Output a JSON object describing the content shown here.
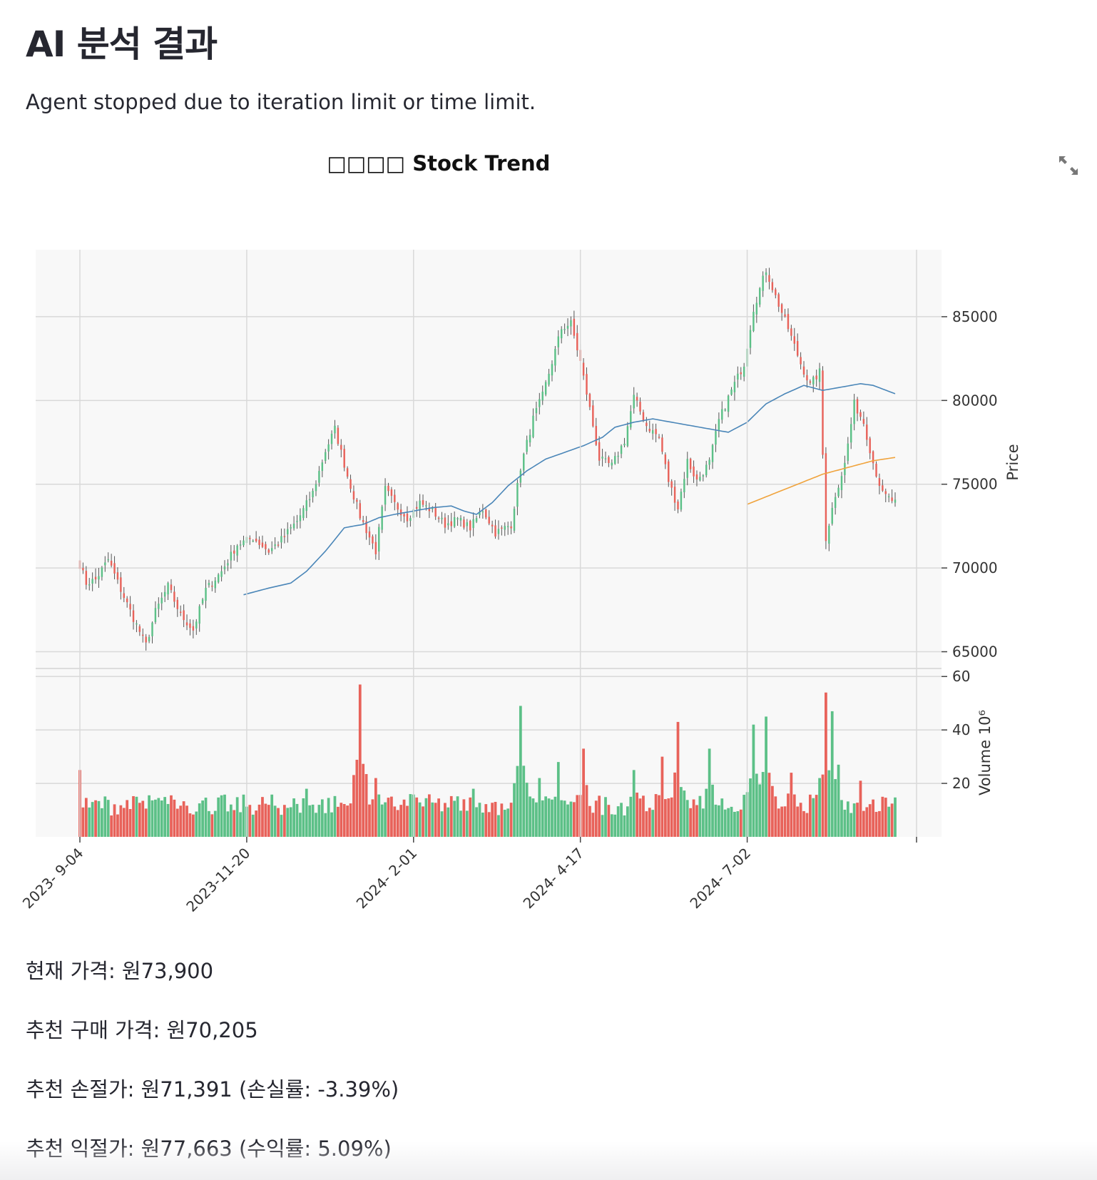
{
  "page": {
    "title": "AI 분석 결과",
    "status": "Agent stopped due to iteration limit or time limit."
  },
  "toolbar": {
    "expand_icon": "fullscreen-expand-icon"
  },
  "results": {
    "current_price": "현재 가격: 원73,900",
    "buy_price": "추천 구매 가격: 원70,205",
    "stop_loss": "추천 손절가: 원71,391 (손실률: -3.39%)",
    "take_profit": "추천 익절가: 원77,663 (수익률: 5.09%)"
  },
  "colors": {
    "up": "#5cc087",
    "down": "#e8625a",
    "ma_short": "#4a86b8",
    "ma_long": "#f0a33c",
    "grid": "#d9d9d9",
    "panel_bg": "#f8f8f8"
  },
  "chart_data": {
    "type": "candlestick",
    "title": "□□□□ Stock Trend",
    "ylabel": "Price",
    "volume_label": "Volume  10⁶",
    "ylim": [
      64000,
      89000
    ],
    "volume_ylim": [
      0,
      63
    ],
    "y_ticks": [
      65000,
      70000,
      75000,
      80000,
      85000
    ],
    "volume_ticks": [
      20,
      40,
      60
    ],
    "x_ticks": [
      {
        "label": "2023- 9-04",
        "index": 0
      },
      {
        "label": "2023-11-20",
        "index": 53
      },
      {
        "label": "2024- 2-01",
        "index": 106
      },
      {
        "label": "2024- 4-17",
        "index": 159
      },
      {
        "label": "2024- 7-02",
        "index": 212
      }
    ],
    "n_bars": 260,
    "grid": true,
    "close_anchors": [
      [
        0,
        70200
      ],
      [
        2,
        69100
      ],
      [
        5,
        69300
      ],
      [
        9,
        70500
      ],
      [
        13,
        68700
      ],
      [
        17,
        67000
      ],
      [
        21,
        65400
      ],
      [
        24,
        67400
      ],
      [
        28,
        68900
      ],
      [
        32,
        67200
      ],
      [
        36,
        66300
      ],
      [
        40,
        68700
      ],
      [
        45,
        69800
      ],
      [
        50,
        71400
      ],
      [
        55,
        71800
      ],
      [
        60,
        71000
      ],
      [
        64,
        71700
      ],
      [
        69,
        72800
      ],
      [
        74,
        74500
      ],
      [
        78,
        77000
      ],
      [
        81,
        78300
      ],
      [
        85,
        75500
      ],
      [
        89,
        73100
      ],
      [
        94,
        71000
      ],
      [
        97,
        74700
      ],
      [
        100,
        73800
      ],
      [
        104,
        73000
      ],
      [
        108,
        73900
      ],
      [
        112,
        73400
      ],
      [
        116,
        72600
      ],
      [
        120,
        72900
      ],
      [
        124,
        72400
      ],
      [
        128,
        73500
      ],
      [
        132,
        72100
      ],
      [
        137,
        72600
      ],
      [
        140,
        76000
      ],
      [
        144,
        78900
      ],
      [
        147,
        80300
      ],
      [
        150,
        82300
      ],
      [
        153,
        84300
      ],
      [
        156,
        84600
      ],
      [
        159,
        82300
      ],
      [
        162,
        79500
      ],
      [
        165,
        76500
      ],
      [
        169,
        76100
      ],
      [
        173,
        77600
      ],
      [
        176,
        80200
      ],
      [
        180,
        78500
      ],
      [
        184,
        77800
      ],
      [
        187,
        75200
      ],
      [
        190,
        73600
      ],
      [
        193,
        76400
      ],
      [
        196,
        75200
      ],
      [
        200,
        76300
      ],
      [
        203,
        78800
      ],
      [
        207,
        80600
      ],
      [
        211,
        82200
      ],
      [
        214,
        85500
      ],
      [
        218,
        87800
      ],
      [
        221,
        86200
      ],
      [
        225,
        84300
      ],
      [
        229,
        82200
      ],
      [
        232,
        80900
      ],
      [
        235,
        81700
      ],
      [
        237,
        71800
      ],
      [
        240,
        74400
      ],
      [
        243,
        76200
      ],
      [
        246,
        79800
      ],
      [
        249,
        78700
      ],
      [
        252,
        76300
      ],
      [
        255,
        74400
      ],
      [
        259,
        73900
      ]
    ],
    "ma_short_anchors": [
      [
        52,
        68400
      ],
      [
        60,
        68800
      ],
      [
        67,
        69100
      ],
      [
        72,
        69800
      ],
      [
        78,
        71000
      ],
      [
        84,
        72400
      ],
      [
        90,
        72600
      ],
      [
        95,
        73000
      ],
      [
        100,
        73200
      ],
      [
        106,
        73400
      ],
      [
        112,
        73600
      ],
      [
        118,
        73700
      ],
      [
        122,
        73400
      ],
      [
        126,
        73200
      ],
      [
        131,
        73900
      ],
      [
        136,
        74900
      ],
      [
        142,
        75800
      ],
      [
        148,
        76500
      ],
      [
        154,
        76900
      ],
      [
        160,
        77300
      ],
      [
        166,
        77800
      ],
      [
        170,
        78400
      ],
      [
        176,
        78700
      ],
      [
        182,
        78900
      ],
      [
        188,
        78700
      ],
      [
        194,
        78500
      ],
      [
        200,
        78300
      ],
      [
        206,
        78100
      ],
      [
        212,
        78700
      ],
      [
        218,
        79800
      ],
      [
        224,
        80400
      ],
      [
        230,
        80900
      ],
      [
        236,
        80600
      ],
      [
        242,
        80800
      ],
      [
        248,
        81000
      ],
      [
        252,
        80900
      ],
      [
        259,
        80400
      ]
    ],
    "ma_long_anchors": [
      [
        212,
        73800
      ],
      [
        220,
        74400
      ],
      [
        228,
        75000
      ],
      [
        236,
        75600
      ],
      [
        244,
        76000
      ],
      [
        252,
        76400
      ],
      [
        259,
        76600
      ]
    ],
    "volume_spikes": [
      [
        0,
        25
      ],
      [
        18,
        15
      ],
      [
        30,
        12
      ],
      [
        45,
        14
      ],
      [
        60,
        11
      ],
      [
        72,
        18
      ],
      [
        89,
        57
      ],
      [
        94,
        22
      ],
      [
        105,
        16
      ],
      [
        125,
        18
      ],
      [
        140,
        49
      ],
      [
        146,
        22
      ],
      [
        152,
        28
      ],
      [
        160,
        33
      ],
      [
        176,
        25
      ],
      [
        185,
        30
      ],
      [
        190,
        43
      ],
      [
        200,
        33
      ],
      [
        214,
        42
      ],
      [
        218,
        45
      ],
      [
        226,
        24
      ],
      [
        235,
        22
      ],
      [
        237,
        54
      ],
      [
        239,
        47
      ],
      [
        241,
        27
      ],
      [
        248,
        21
      ],
      [
        255,
        15
      ]
    ]
  }
}
